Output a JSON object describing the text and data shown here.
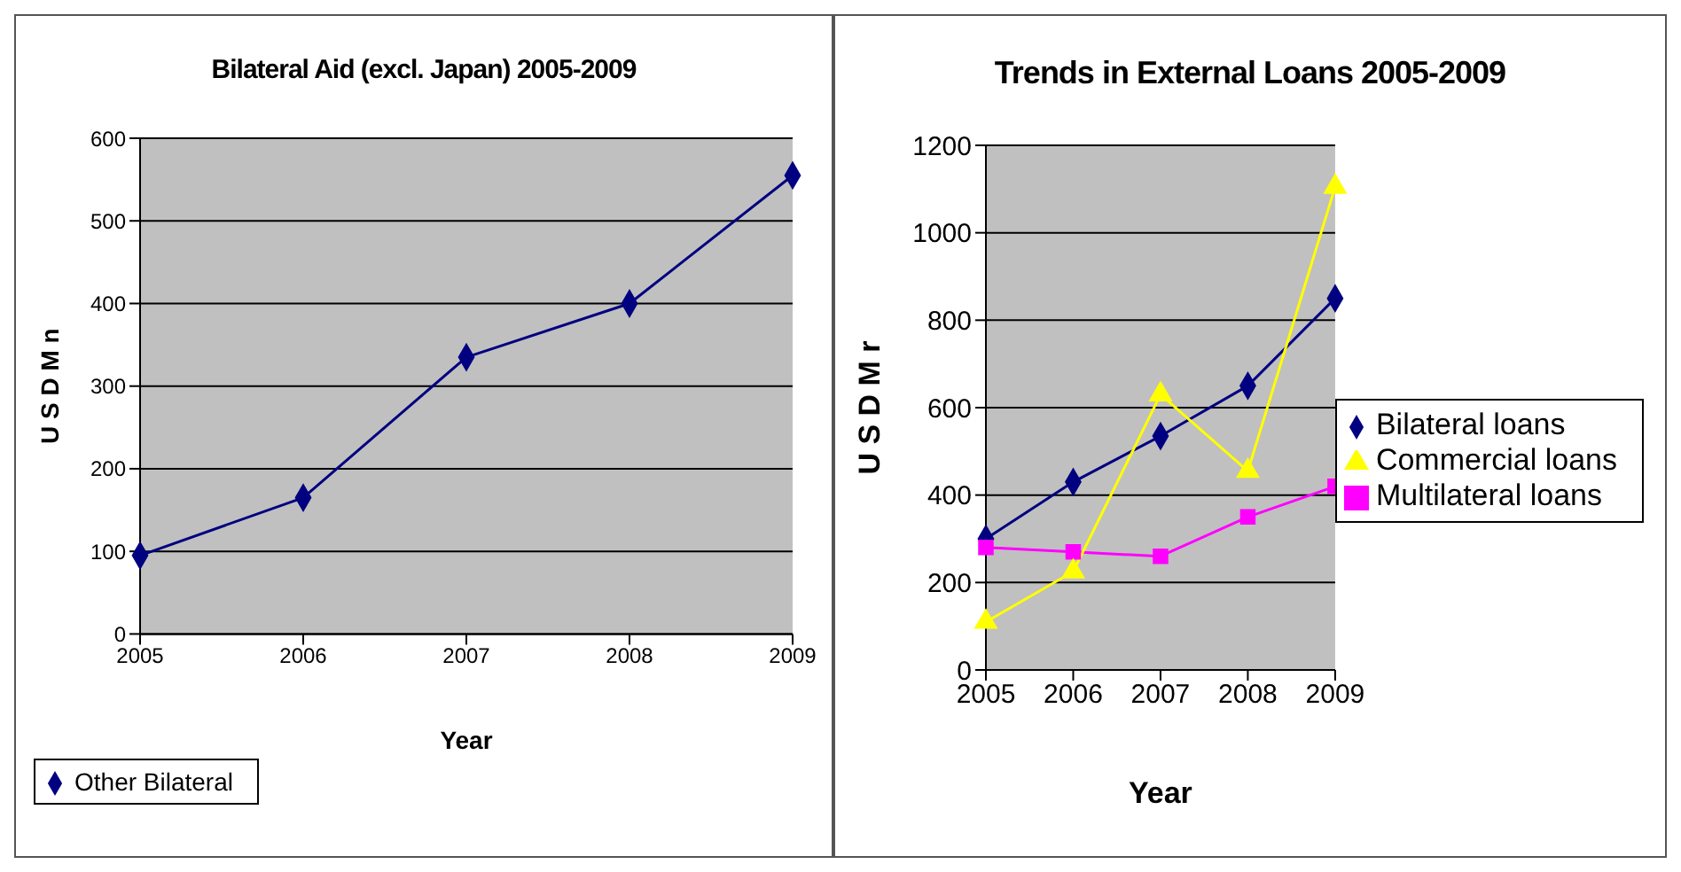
{
  "chart_data": [
    {
      "type": "line",
      "title": "Bilateral Aid (excl. Japan) 2005-2009",
      "xlabel": "Year",
      "ylabel": "U S D M n",
      "categories": [
        "2005",
        "2006",
        "2007",
        "2008",
        "2009"
      ],
      "series": [
        {
          "name": "Other Bilateral",
          "color": "#000080",
          "marker": "diamond",
          "values": [
            95,
            165,
            335,
            400,
            555
          ]
        }
      ],
      "ylim": [
        0,
        600
      ],
      "yticks": [
        0,
        100,
        200,
        300,
        400,
        500,
        600
      ],
      "grid": "y",
      "legend": "bottom"
    },
    {
      "type": "line",
      "title": "Trends in External Loans 2005-2009",
      "xlabel": "Year",
      "ylabel": "U S D M r",
      "categories": [
        "2005",
        "2006",
        "2007",
        "2008",
        "2009"
      ],
      "series": [
        {
          "name": "Bilateral loans",
          "color": "#000080",
          "marker": "diamond",
          "values": [
            300,
            430,
            535,
            650,
            850
          ]
        },
        {
          "name": "Multilateral loans",
          "color": "#ff00ff",
          "marker": "square",
          "values": [
            280,
            270,
            260,
            350,
            420
          ]
        },
        {
          "name": "Commercial loans",
          "color": "#ffff00",
          "marker": "triangle",
          "values": [
            110,
            225,
            630,
            455,
            1105
          ]
        }
      ],
      "ylim": [
        0,
        1200
      ],
      "yticks": [
        0,
        200,
        400,
        600,
        800,
        1000,
        1200
      ],
      "grid": "y",
      "legend": "right"
    }
  ]
}
